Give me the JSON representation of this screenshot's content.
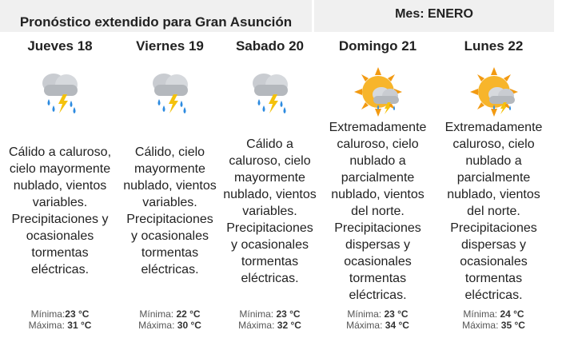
{
  "header": {
    "title": "Pronóstico extendido para Gran Asunción",
    "month": "Mes: ENERO"
  },
  "days": [
    {
      "name": "Jueves 18",
      "description": "Cálido a caluroso, cielo mayormente nublado, vientos variables. Precipitaciones y ocasionales tormentas eléctricas.",
      "min_label": "Mínima:",
      "min": "23 °C",
      "max_label": "Máxima:",
      "max": "31 °C"
    },
    {
      "name": "Viernes 19",
      "description": "Cálido, cielo mayormente nublado, vientos variables. Precipitaciones y ocasionales tormentas eléctricas.",
      "min_label": "Mínima:",
      "min": "22 °C",
      "max_label": "Máxima:",
      "max": "30 °C"
    },
    {
      "name": "Sabado 20",
      "description": "Cálido a caluroso, cielo mayormente nublado, vientos variables. Precipitaciones y ocasionales tormentas eléctricas.",
      "min_label": "Mínima:",
      "min": "23 °C",
      "max_label": "Máxima:",
      "max": "32 °C"
    },
    {
      "name": "Domingo 21",
      "description": "Extremadamente caluroso, cielo nublado a parcialmente nublado, vientos del norte. Precipitaciones dispersas y ocasionales tormentas eléctricas.",
      "min_label": "Mínima:",
      "min": "23 °C",
      "max_label": "Máxima:",
      "max": "34 °C"
    },
    {
      "name": "Lunes 22",
      "description": "Extremadamente caluroso, cielo nublado a parcialmente nublado, vientos del norte. Precipitaciones dispersas y ocasionales tormentas eléctricas.",
      "min_label": "Mínima:",
      "min": "24 °C",
      "max_label": "Máxima:",
      "max": "35 °C"
    }
  ]
}
